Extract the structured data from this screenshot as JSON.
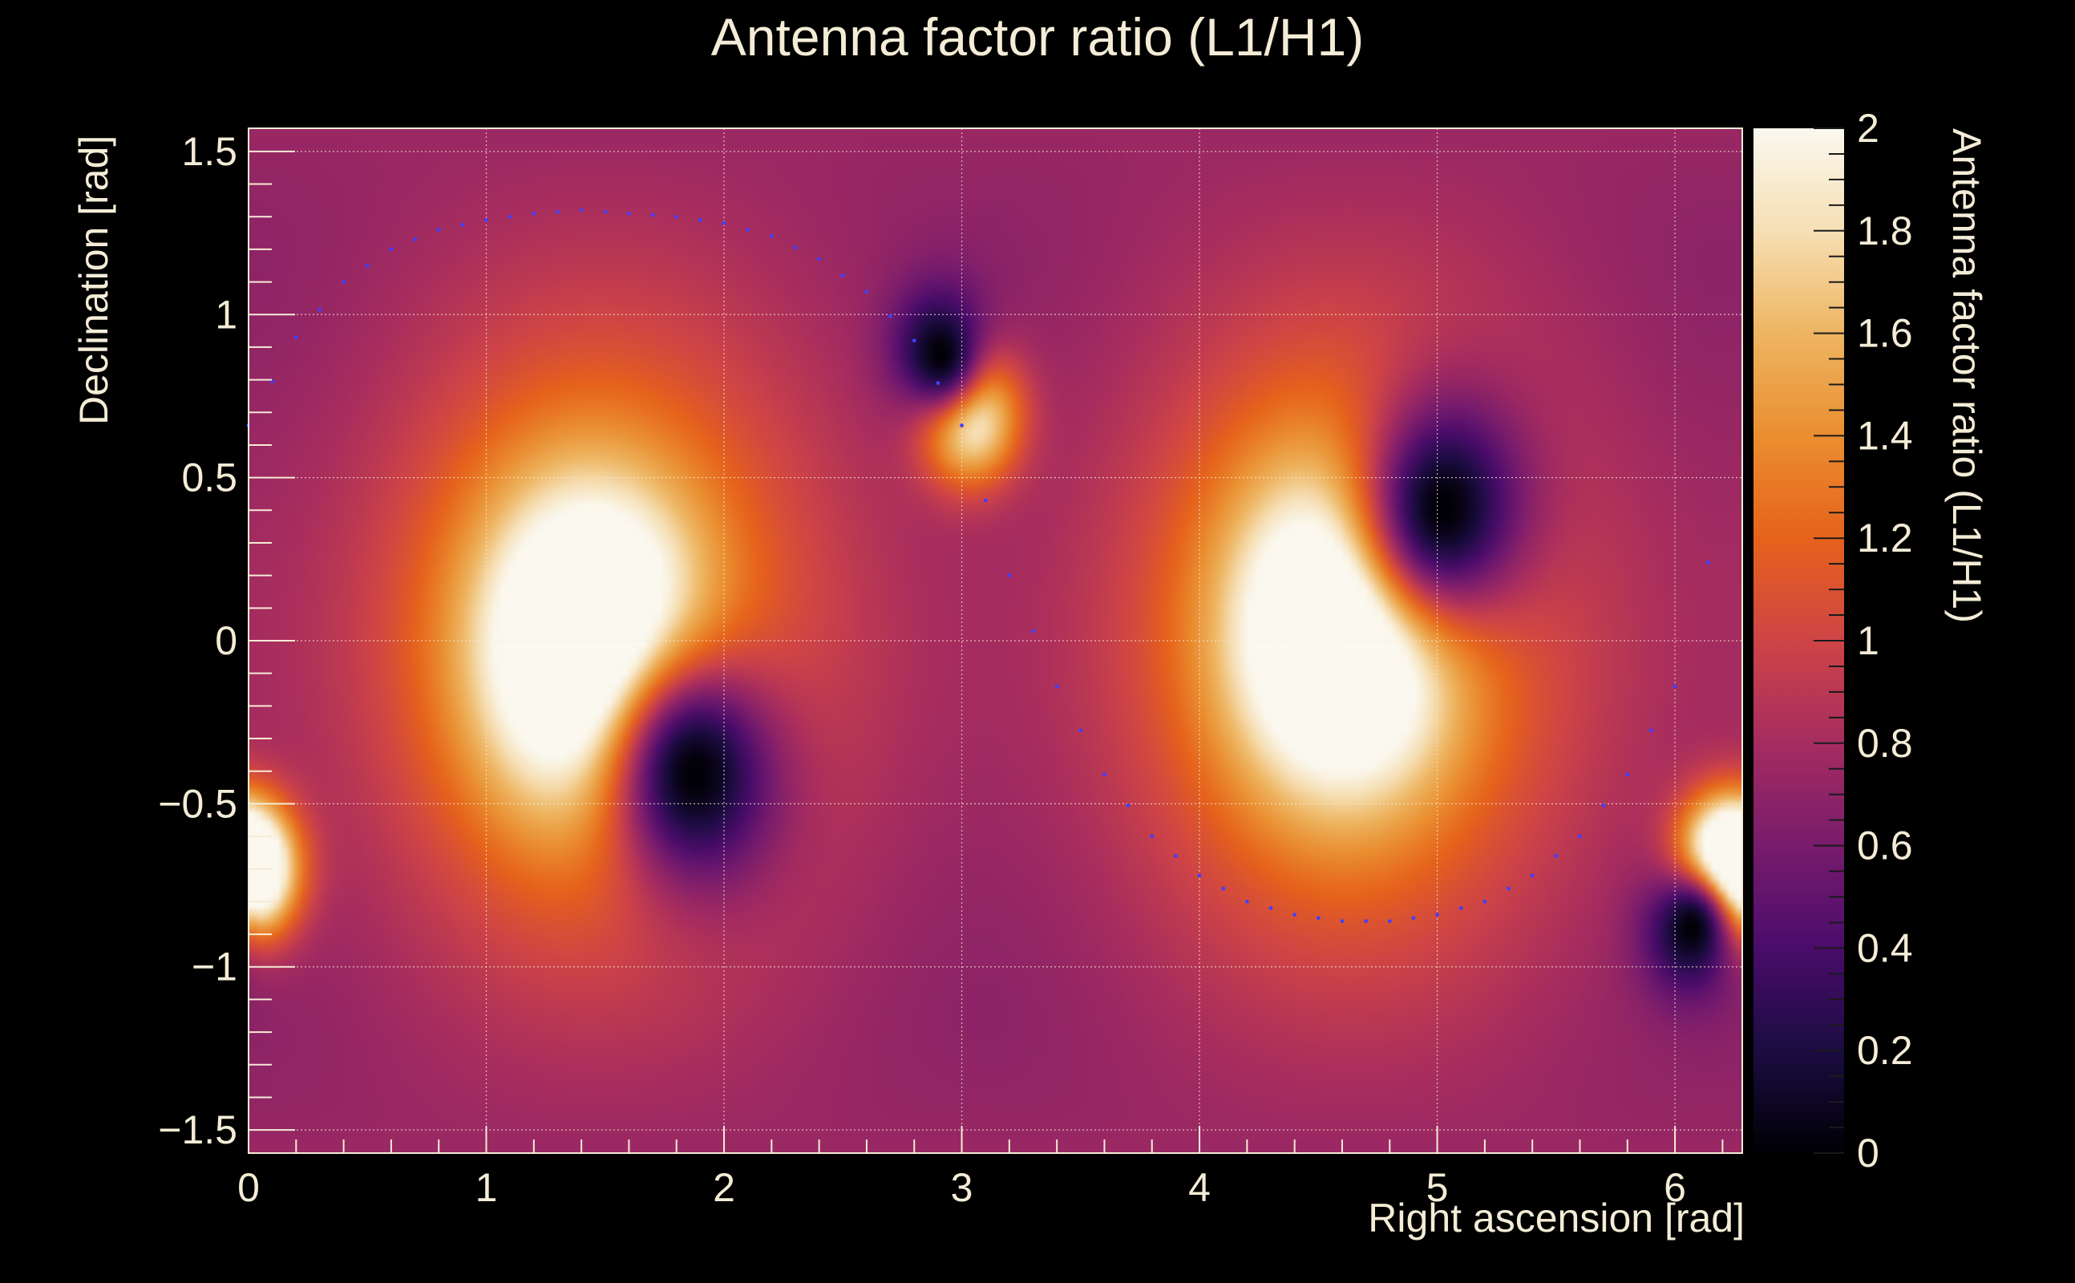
{
  "chart_data": {
    "type": "heatmap",
    "title": "Antenna factor ratio (L1/H1)",
    "xlabel": "Right ascension [rad]",
    "ylabel": "Declination [rad]",
    "zlabel": "Antenna factor ratio (L1/H1)",
    "xlim": [
      0,
      6.283
    ],
    "ylim": [
      -1.571,
      1.571
    ],
    "zlim": [
      0,
      2
    ],
    "x_ticks": [
      "0",
      "1",
      "2",
      "3",
      "4",
      "5",
      "6"
    ],
    "y_ticks": [
      "1.5",
      "1",
      "0.5",
      "0",
      "−0.5",
      "−1",
      "−1.5"
    ],
    "z_ticks": [
      "0",
      "0.2",
      "0.4",
      "0.6",
      "0.8",
      "1",
      "1.2",
      "1.4",
      "1.6",
      "1.8",
      "2"
    ],
    "grid": true,
    "colormap": "inferno",
    "features": {
      "bright_maxima": [
        {
          "ra": 1.43,
          "dec": -0.02,
          "value": 2.0
        },
        {
          "ra": 4.6,
          "dec": 0.03,
          "value": 2.0
        },
        {
          "ra": 3.03,
          "dec": 0.7,
          "value": 2.0
        },
        {
          "ra": 6.2,
          "dec": -0.7,
          "value": 2.0
        },
        {
          "ra": 0.0,
          "dec": -0.7,
          "value": 2.0
        }
      ],
      "dark_minima": [
        {
          "ra": 1.88,
          "dec": -0.41,
          "value": 0.0
        },
        {
          "ra": 5.03,
          "dec": 0.41,
          "value": 0.0
        },
        {
          "ra": 2.91,
          "dec": 0.88,
          "value": 0.0
        },
        {
          "ra": 6.07,
          "dec": -0.88,
          "value": 0.0
        }
      ]
    },
    "overlay_series": {
      "style": "dotted",
      "color": "#4040ff",
      "points": [
        [
          0.0,
          0.66
        ],
        [
          0.2,
          0.93
        ],
        [
          0.4,
          1.1
        ],
        [
          0.6,
          1.2
        ],
        [
          0.8,
          1.26
        ],
        [
          1.0,
          1.29
        ],
        [
          1.2,
          1.31
        ],
        [
          1.4,
          1.32
        ],
        [
          1.6,
          1.31
        ],
        [
          1.8,
          1.3
        ],
        [
          2.0,
          1.28
        ],
        [
          2.2,
          1.24
        ],
        [
          2.4,
          1.17
        ],
        [
          2.6,
          1.07
        ],
        [
          2.8,
          0.92
        ],
        [
          3.0,
          0.66
        ],
        [
          3.2,
          0.2
        ],
        [
          3.4,
          -0.14
        ],
        [
          3.6,
          -0.41
        ],
        [
          3.8,
          -0.6
        ],
        [
          4.0,
          -0.72
        ],
        [
          4.2,
          -0.8
        ],
        [
          4.4,
          -0.84
        ],
        [
          4.6,
          -0.86
        ],
        [
          4.8,
          -0.86
        ],
        [
          5.0,
          -0.84
        ],
        [
          5.2,
          -0.8
        ],
        [
          5.4,
          -0.72
        ],
        [
          5.6,
          -0.6
        ],
        [
          5.8,
          -0.41
        ],
        [
          6.0,
          -0.14
        ],
        [
          6.28,
          0.62
        ]
      ]
    }
  }
}
